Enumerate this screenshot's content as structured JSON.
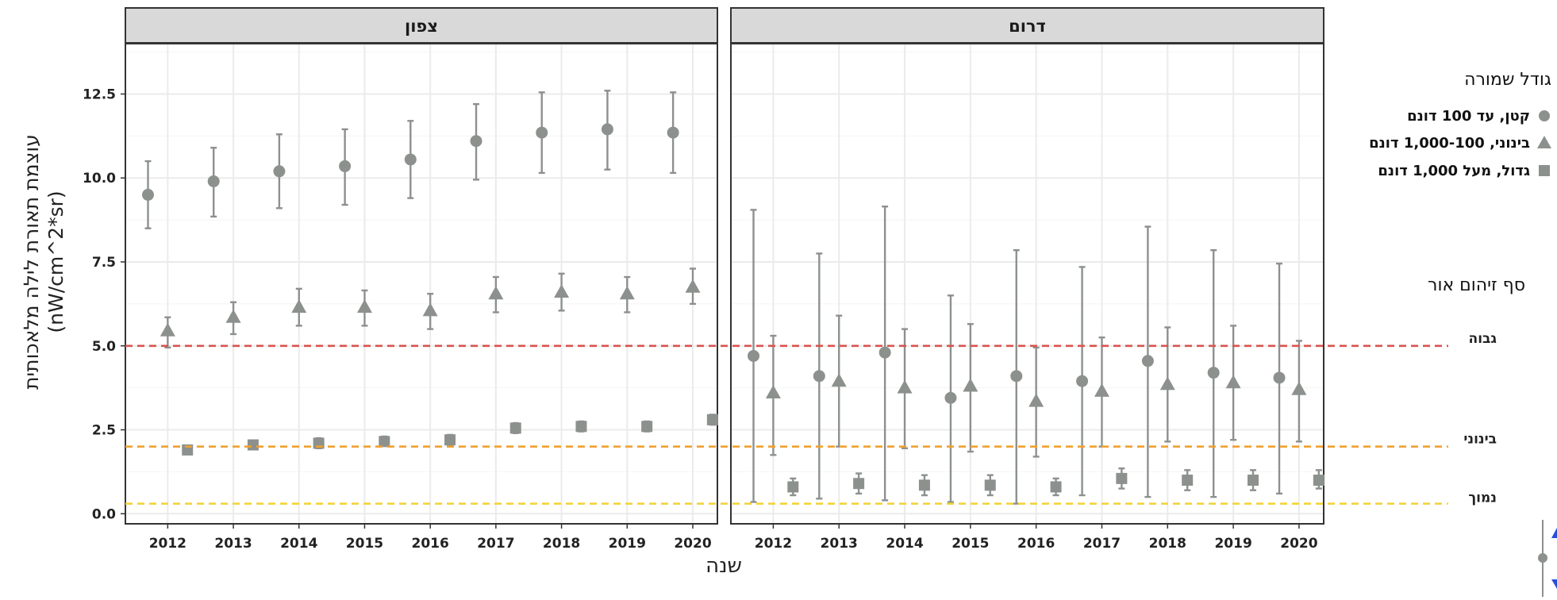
{
  "chart_data": {
    "type": "scatter",
    "ylabel_line1": "עוצמת תאורת לילה מלאכותית",
    "ylabel_line2": "(nW/cm^2*sr)",
    "xlabel": "שנה",
    "years": [
      "2012",
      "2013",
      "2014",
      "2015",
      "2016",
      "2017",
      "2018",
      "2019",
      "2020"
    ],
    "ylim": [
      -0.3,
      14.0
    ],
    "yticks": [
      "0.0",
      "2.5",
      "5.0",
      "7.5",
      "10.0",
      "12.5"
    ],
    "grid": true,
    "panels": [
      {
        "title": "צפון",
        "series": [
          {
            "name": "קטן, עד 100 דונם",
            "shape": "circle",
            "values": [
              9.5,
              9.9,
              10.2,
              10.35,
              10.55,
              11.1,
              11.35,
              11.45,
              11.35
            ],
            "lower": [
              8.5,
              8.85,
              9.1,
              9.2,
              9.4,
              9.95,
              10.15,
              10.25,
              10.15
            ],
            "upper": [
              10.5,
              10.9,
              11.3,
              11.45,
              11.7,
              12.2,
              12.55,
              12.6,
              12.55
            ]
          },
          {
            "name": "בינוני, 1,000-100 דונם",
            "shape": "triangle",
            "values": [
              5.45,
              5.85,
              6.15,
              6.15,
              6.05,
              6.55,
              6.6,
              6.55,
              6.75
            ],
            "lower": [
              4.95,
              5.35,
              5.6,
              5.6,
              5.5,
              6.0,
              6.05,
              6.0,
              6.25
            ],
            "upper": [
              5.85,
              6.3,
              6.7,
              6.65,
              6.55,
              7.05,
              7.15,
              7.05,
              7.3
            ]
          },
          {
            "name": "גדול, מעל 1,000 דונם",
            "shape": "square",
            "values": [
              1.9,
              2.05,
              2.1,
              2.15,
              2.2,
              2.55,
              2.6,
              2.6,
              2.8
            ],
            "lower": [
              1.8,
              1.95,
              1.95,
              2.05,
              2.05,
              2.4,
              2.45,
              2.45,
              2.65
            ],
            "upper": [
              2.0,
              2.15,
              2.25,
              2.3,
              2.35,
              2.7,
              2.75,
              2.75,
              2.95
            ]
          }
        ]
      },
      {
        "title": "דרום",
        "series": [
          {
            "name": "קטן, עד 100 דונם",
            "shape": "circle",
            "values": [
              4.7,
              4.1,
              4.8,
              3.45,
              4.1,
              3.95,
              4.55,
              4.2,
              4.05
            ],
            "lower": [
              0.35,
              0.45,
              0.4,
              0.35,
              0.3,
              0.55,
              0.5,
              0.5,
              0.6
            ],
            "upper": [
              9.05,
              7.75,
              9.15,
              6.5,
              7.85,
              7.35,
              8.55,
              7.85,
              7.45
            ]
          },
          {
            "name": "בינוני, 1,000-100 דונם",
            "shape": "triangle",
            "values": [
              3.6,
              3.95,
              3.75,
              3.8,
              3.35,
              3.65,
              3.85,
              3.9,
              3.7
            ],
            "lower": [
              1.75,
              2.0,
              1.95,
              1.85,
              1.7,
              2.0,
              2.15,
              2.2,
              2.15
            ],
            "upper": [
              5.3,
              5.9,
              5.5,
              5.65,
              4.95,
              5.25,
              5.55,
              5.6,
              5.15
            ]
          },
          {
            "name": "גדול, מעל 1,000 דונם",
            "shape": "square",
            "values": [
              0.8,
              0.9,
              0.85,
              0.85,
              0.8,
              1.05,
              1.0,
              1.0,
              1.0
            ],
            "lower": [
              0.55,
              0.6,
              0.55,
              0.55,
              0.55,
              0.75,
              0.7,
              0.7,
              0.75
            ],
            "upper": [
              1.05,
              1.2,
              1.15,
              1.15,
              1.05,
              1.35,
              1.3,
              1.3,
              1.3
            ]
          }
        ]
      }
    ],
    "reference_lines": [
      {
        "name": "גבוה",
        "value": 5.0,
        "color": "#d9534f"
      },
      {
        "name": "בינוני",
        "value": 2.0,
        "color": "#f0a030"
      },
      {
        "name": "נמוך",
        "value": 0.3,
        "color": "#f2d232"
      }
    ],
    "legend": {
      "size_title": "גודל שמורה",
      "threshold_title": "סף זיהום אור",
      "placement": "right"
    },
    "colors": {
      "points": "#8c918e",
      "strip_bg": "#d9d9d9",
      "grid": "#ebebeb",
      "panel_border": "#333333"
    }
  }
}
